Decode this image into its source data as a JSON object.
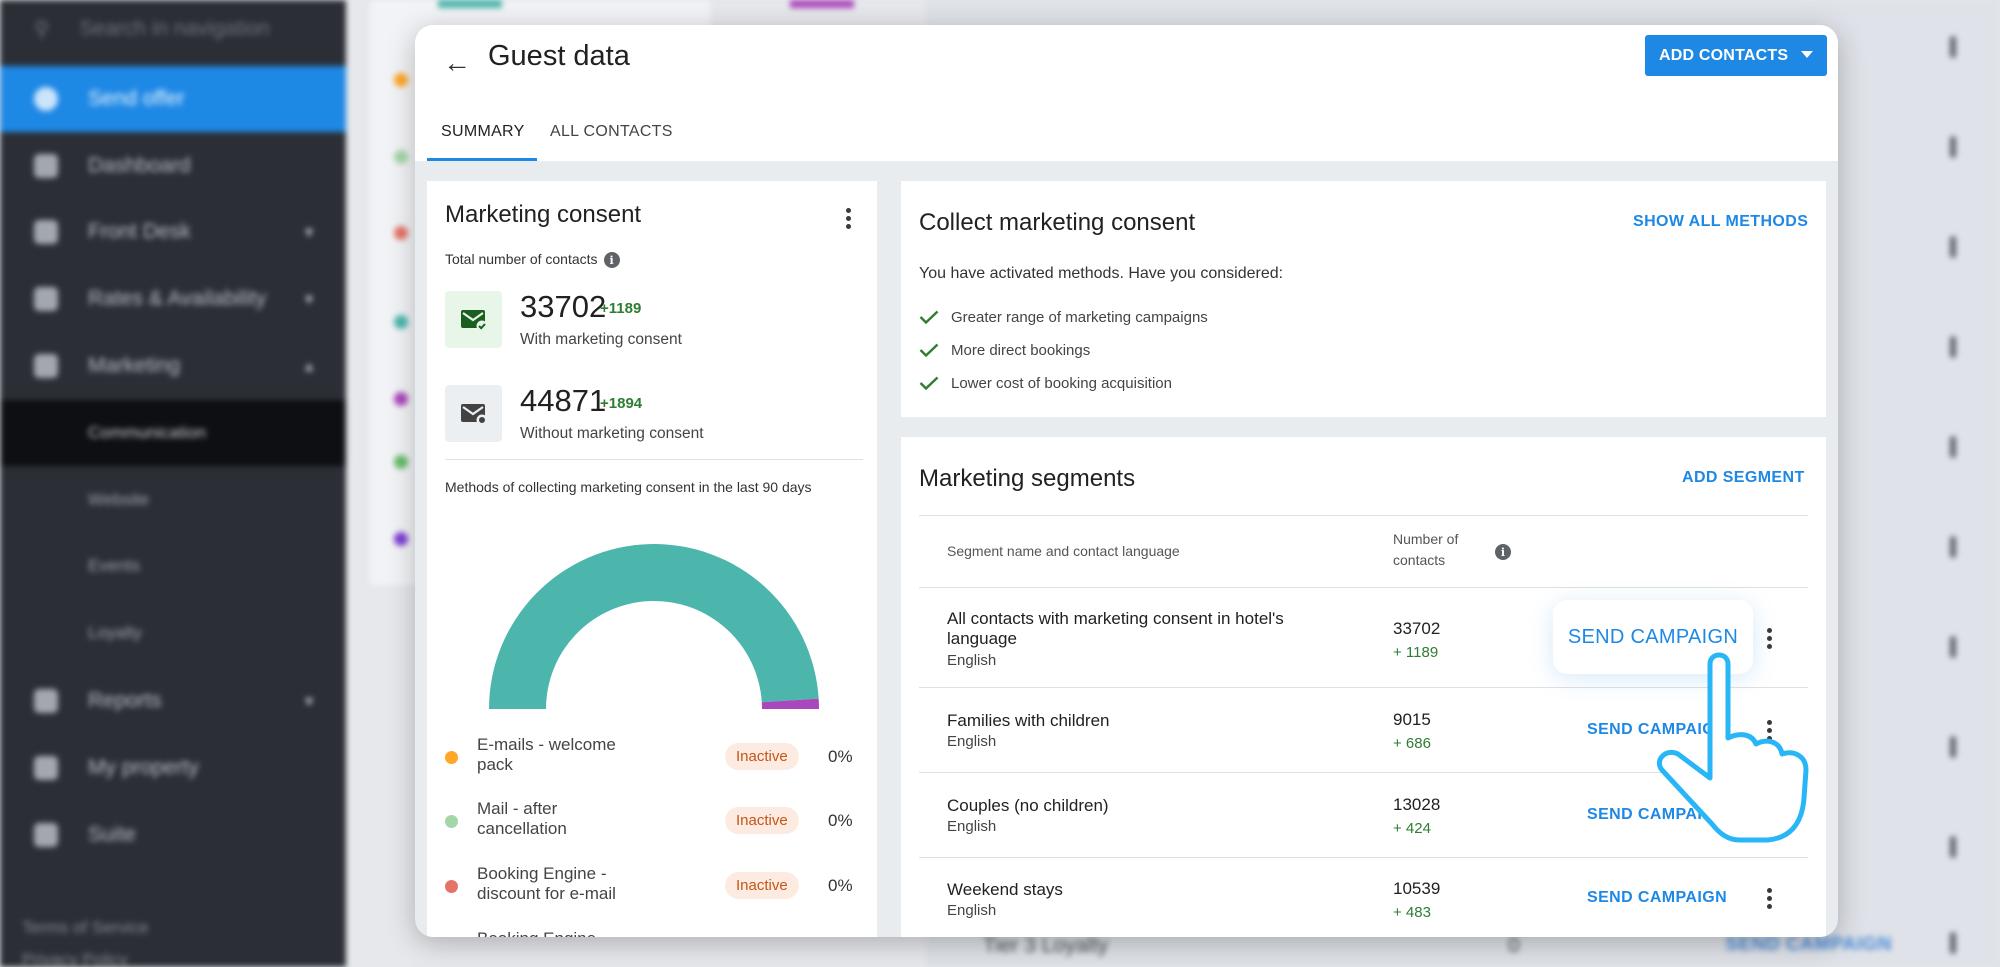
{
  "sidebar": {
    "search_placeholder": "Search in navigation",
    "items": [
      {
        "label": "Send offer",
        "icon": "offer-icon"
      },
      {
        "label": "Dashboard",
        "icon": "dashboard-icon"
      },
      {
        "label": "Front Desk",
        "icon": "front-desk-icon"
      },
      {
        "label": "Rates & Availability",
        "icon": "cart-icon"
      },
      {
        "label": "Marketing",
        "icon": "megaphone-icon"
      },
      {
        "label": "Reports",
        "icon": "chart-icon"
      },
      {
        "label": "My property",
        "icon": "home-icon"
      },
      {
        "label": "Suite",
        "icon": "suite-icon"
      }
    ],
    "marketing_sub": [
      "Communication",
      "Website",
      "Events",
      "Loyalty"
    ],
    "footer": [
      "Terms of Service",
      "Privacy Policy"
    ]
  },
  "background": {
    "row_label": "Tier 3 Loyalty",
    "row_count": "0",
    "row_button": "SEND CAMPAIGN"
  },
  "header": {
    "title": "Guest data",
    "add_contacts": "ADD CONTACTS",
    "tabs": [
      "SUMMARY",
      "ALL CONTACTS"
    ]
  },
  "consent_card": {
    "title": "Marketing consent",
    "total_label": "Total number of contacts",
    "with": {
      "value": "33702",
      "delta": "+1189",
      "label": "With marketing consent"
    },
    "without": {
      "value": "44871",
      "delta": "+1894",
      "label": "Without marketing consent"
    },
    "methods_title": "Methods of collecting marketing consent in the last 90 days",
    "gauge": {
      "segments": [
        {
          "name": "teal",
          "fraction": 0.98,
          "color": "#4db6ac"
        },
        {
          "name": "purple",
          "fraction": 0.02,
          "color": "#ab47bc"
        }
      ]
    },
    "methods": [
      {
        "label": "E-mails - welcome pack",
        "status": "Inactive",
        "pct": "0%",
        "color": "#ffa726"
      },
      {
        "label": "Mail - after cancellation",
        "status": "Inactive",
        "pct": "0%",
        "color": "#a5d6a7"
      },
      {
        "label": "Booking Engine - discount for e-mail",
        "status": "Inactive",
        "pct": "0%",
        "color": "#e57368"
      },
      {
        "label": "Booking Engine",
        "status": "",
        "pct": "",
        "color": "#4db6ac"
      }
    ]
  },
  "collect_card": {
    "title": "Collect marketing consent",
    "show_all": "SHOW ALL METHODS",
    "intro": "You have activated methods. Have you considered:",
    "benefits": [
      "Greater range of marketing campaigns",
      "More direct bookings",
      "Lower cost of booking acquisition"
    ]
  },
  "segments_card": {
    "title": "Marketing segments",
    "add_segment": "ADD SEGMENT",
    "col_name": "Segment name and contact language",
    "col_count": "Number of contacts",
    "send_label": "SEND CAMPAIGN",
    "rows": [
      {
        "name": "All contacts with marketing consent in hotel's language",
        "lang": "English",
        "count": "33702",
        "delta": "+ 1189"
      },
      {
        "name": "Families with children",
        "lang": "English",
        "count": "9015",
        "delta": "+ 686"
      },
      {
        "name": "Couples (no children)",
        "lang": "English",
        "count": "13028",
        "delta": "+ 424"
      },
      {
        "name": "Weekend stays",
        "lang": "English",
        "count": "10539",
        "delta": "+ 483"
      }
    ]
  },
  "colors": {
    "accent": "#1e88e5",
    "positive": "#2e7d32",
    "inactive_badge": "#fdebe1"
  }
}
